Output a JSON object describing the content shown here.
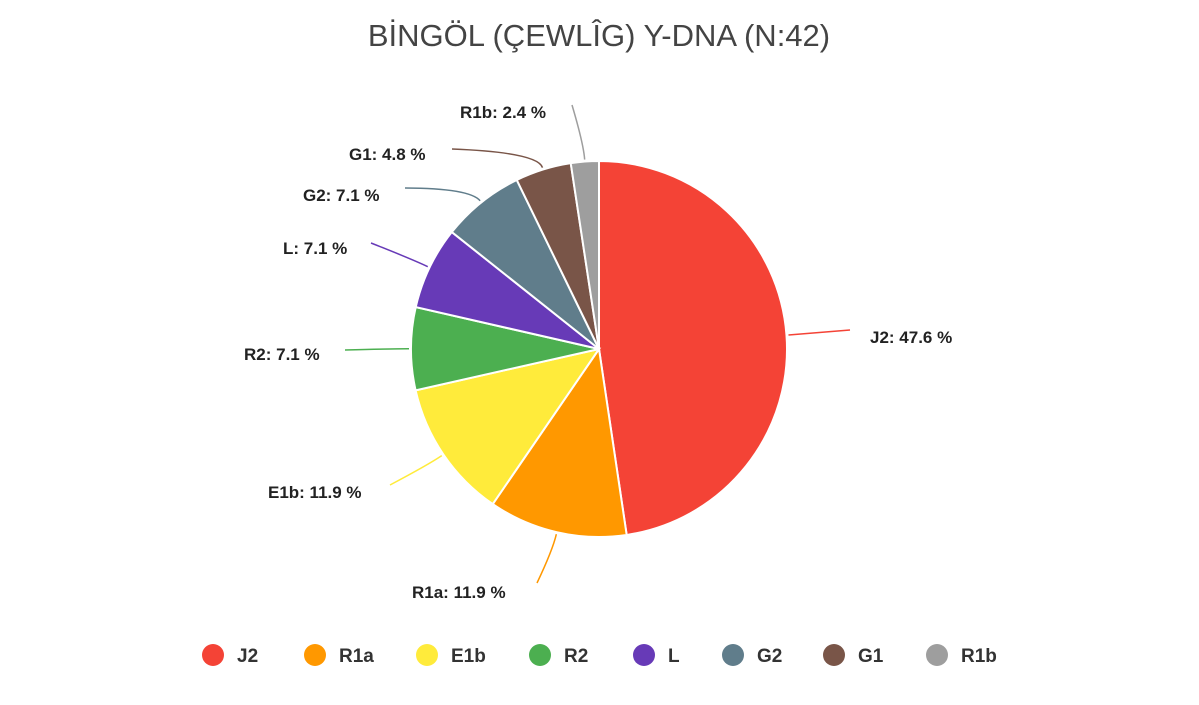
{
  "chart_data": {
    "type": "pie",
    "title": "BİNGÖL (ÇEWLÎG) Y-DNA (N:42)",
    "unit_suffix": " %",
    "legend_position": "bottom",
    "slices": [
      {
        "label": "J2",
        "value": 47.6,
        "display": "47.6",
        "color": "#F44336"
      },
      {
        "label": "R1a",
        "value": 11.9,
        "display": "11.9",
        "color": "#FF9800"
      },
      {
        "label": "E1b",
        "value": 11.9,
        "display": "11.9",
        "color": "#FFEB3B"
      },
      {
        "label": "R2",
        "value": 7.1,
        "display": "7.1",
        "color": "#4CAF50"
      },
      {
        "label": "L",
        "value": 7.1,
        "display": "7.1",
        "color": "#673AB7"
      },
      {
        "label": "G2",
        "value": 7.1,
        "display": "7.1",
        "color": "#607D8B"
      },
      {
        "label": "G1",
        "value": 4.8,
        "display": "4.8",
        "color": "#795548"
      },
      {
        "label": "R1b",
        "value": 2.4,
        "display": "2.4",
        "color": "#9E9E9E"
      }
    ]
  }
}
